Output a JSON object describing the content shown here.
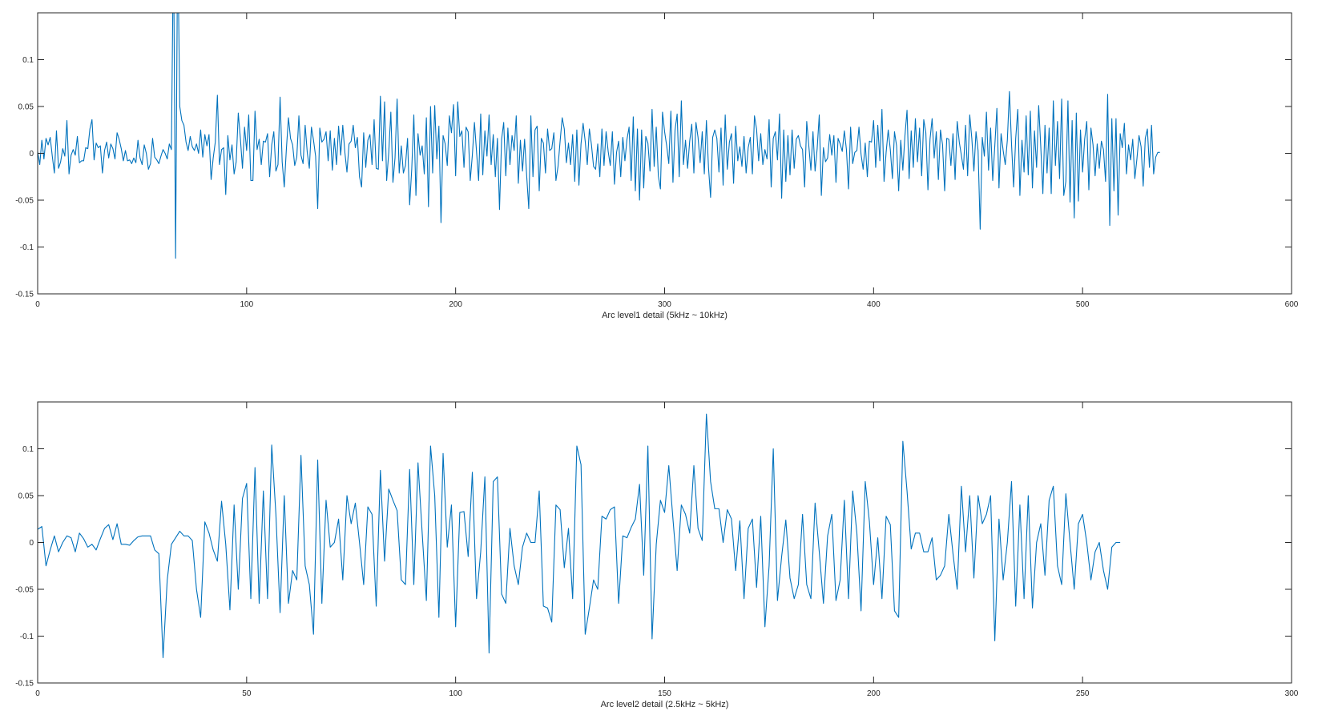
{
  "figure": {
    "line_color": "#0072bd",
    "axis_color": "#262626"
  },
  "chart_data": [
    {
      "type": "line",
      "xlabel": "Arc level1 detail (5kHz ~ 10kHz)",
      "ylabel": "",
      "xlim": [
        0,
        600
      ],
      "ylim": [
        -0.15,
        0.15
      ],
      "xticks": [
        0,
        100,
        200,
        300,
        400,
        500,
        600
      ],
      "xtick_labels": [
        "0",
        "100",
        "200",
        "300",
        "400",
        "500",
        "600"
      ],
      "yticks": [
        -0.15,
        -0.1,
        -0.05,
        0,
        0.05,
        0.1
      ],
      "ytick_labels": [
        "-0.15",
        "-0.1",
        "-0.05",
        "0",
        "0.05",
        "0.1"
      ],
      "grid": false,
      "series": [
        {
          "x_start": 0,
          "x_step": 1,
          "values": [
            0.002,
            -0.012,
            0.014,
            -0.006,
            0.016,
            0.009,
            0.017,
            -0.003,
            -0.021,
            0.024,
            -0.016,
            -0.009,
            0.005,
            -0.003,
            0.035,
            -0.022,
            -0.002,
            0.004,
            -0.002,
            0.018,
            -0.01,
            -0.008,
            -0.008,
            0.006,
            0.005,
            0.026,
            0.036,
            -0.007,
            0.011,
            0.006,
            0.008,
            -0.021,
            0.003,
            0.012,
            -0.005,
            0.01,
            0.005,
            -0.006,
            0.022,
            0.015,
            0.005,
            -0.008,
            0.003,
            -0.008,
            -0.007,
            -0.011,
            -0.005,
            -0.01,
            0.014,
            -0.005,
            -0.012,
            0.009,
            0.0,
            -0.017,
            -0.011,
            0.016,
            -0.004,
            -0.007,
            -0.011,
            -0.003,
            0.004,
            0.0,
            -0.006,
            0.01,
            0.004,
            0.23,
            -0.112,
            0.23,
            0.05,
            0.035,
            0.03,
            0.012,
            0.003,
            0.018,
            0.007,
            0.003,
            0.01,
            0.0,
            0.025,
            -0.004,
            0.02,
            0.008,
            0.02,
            -0.028,
            -0.005,
            0.012,
            0.062,
            -0.012,
            0.004,
            0.006,
            -0.044,
            0.019,
            -0.007,
            0.009,
            -0.022,
            -0.009,
            0.043,
            0.016,
            -0.016,
            0.028,
            0.003,
            0.041,
            -0.029,
            -0.029,
            0.045,
            0.004,
            0.015,
            -0.012,
            0.013,
            0.012,
            0.021,
            -0.025,
            0.009,
            0.023,
            -0.019,
            -0.012,
            0.06,
            -0.009,
            -0.036,
            0.004,
            0.038,
            0.016,
            0.009,
            -0.013,
            -0.004,
            0.04,
            -0.002,
            -0.011,
            0.03,
            0.001,
            -0.016,
            0.028,
            0.014,
            -0.003,
            -0.059,
            0.027,
            0.012,
            0.015,
            0.023,
            -0.008,
            0.024,
            -0.018,
            0.016,
            -0.012,
            0.029,
            -0.002,
            0.03,
            0.001,
            -0.02,
            0.01,
            0.013,
            0.03,
            0.006,
            0.017,
            -0.025,
            -0.036,
            0.022,
            -0.015,
            0.014,
            0.02,
            -0.012,
            0.036,
            -0.016,
            -0.017,
            0.061,
            -0.008,
            0.055,
            -0.029,
            0.001,
            0.044,
            -0.031,
            -0.005,
            0.058,
            -0.021,
            0.008,
            -0.021,
            -0.013,
            0.016,
            -0.055,
            -0.017,
            0.041,
            -0.045,
            0.021,
            -0.002,
            0.008,
            -0.022,
            0.038,
            -0.057,
            0.05,
            -0.021,
            0.051,
            -0.006,
            0.029,
            -0.074,
            0.019,
            0.01,
            -0.013,
            0.04,
            0.022,
            0.052,
            -0.024,
            0.055,
            0.018,
            0.024,
            -0.015,
            0.028,
            0.023,
            -0.029,
            -0.002,
            0.033,
            0.002,
            -0.029,
            0.042,
            -0.023,
            0.024,
            -0.003,
            0.041,
            -0.012,
            0.02,
            -0.025,
            0.016,
            -0.06,
            0.015,
            0.033,
            -0.024,
            0.027,
            -0.012,
            0.019,
            0.003,
            0.04,
            -0.032,
            0.014,
            -0.019,
            0.015,
            -0.024,
            -0.059,
            0.04,
            -0.025,
            0.025,
            0.029,
            -0.04,
            0.016,
            0.011,
            -0.021,
            0.026,
            0.003,
            0.005,
            0.022,
            -0.029,
            -0.014,
            0.013,
            0.038,
            0.026,
            -0.01,
            0.011,
            -0.012,
            0.02,
            -0.03,
            0.025,
            -0.034,
            0.01,
            0.032,
            0.013,
            -0.012,
            0.026,
            0.009,
            -0.014,
            -0.017,
            0.01,
            -0.025,
            0.026,
            -0.013,
            0.023,
            0.002,
            -0.013,
            0.023,
            -0.033,
            0.001,
            0.013,
            -0.025,
            0.017,
            -0.008,
            0.015,
            0.028,
            -0.029,
            0.039,
            -0.04,
            0.026,
            -0.05,
            0.025,
            -0.037,
            0.018,
            0.011,
            -0.019,
            0.047,
            -0.014,
            0.028,
            -0.024,
            -0.038,
            0.044,
            0.023,
            0.008,
            -0.011,
            0.045,
            -0.031,
            0.025,
            0.042,
            -0.025,
            0.056,
            -0.012,
            0.014,
            -0.016,
            0.013,
            0.031,
            -0.021,
            0.033,
            0.017,
            -0.01,
            0.023,
            -0.022,
            0.035,
            -0.015,
            -0.047,
            0.017,
            0.025,
            0.016,
            -0.02,
            0.027,
            -0.034,
            0.041,
            -0.017,
            0.012,
            0.021,
            -0.032,
            0.029,
            -0.008,
            0.007,
            -0.014,
            0.018,
            -0.021,
            0.006,
            0.017,
            -0.022,
            0.04,
            0.026,
            -0.008,
            0.021,
            -0.012,
            0.004,
            -0.006,
            0.036,
            -0.036,
            0.016,
            0.023,
            -0.007,
            0.042,
            -0.048,
            0.025,
            -0.03,
            0.019,
            -0.023,
            0.025,
            -0.016,
            0.015,
            0.019,
            0.008,
            0.004,
            -0.036,
            0.034,
            0.008,
            -0.018,
            0.023,
            -0.019,
            0.005,
            0.041,
            -0.045,
            0.006,
            -0.009,
            -0.005,
            0.02,
            -0.002,
            0.019,
            -0.031,
            0.016,
            0.01,
            0.002,
            0.024,
            0.004,
            -0.038,
            0.028,
            -0.011,
            0.001,
            0.003,
            0.028,
            -0.001,
            -0.017,
            0.011,
            -0.025,
            0.013,
            0.012,
            0.035,
            -0.015,
            0.03,
            -0.008,
            0.047,
            -0.03,
            0.001,
            0.025,
            0.004,
            -0.027,
            0.023,
            0.008,
            -0.04,
            0.014,
            -0.018,
            0.019,
            0.046,
            -0.027,
            0.024,
            -0.015,
            0.037,
            -0.009,
            0.027,
            -0.024,
            0.036,
            0.022,
            -0.039,
            0.015,
            0.037,
            -0.005,
            0.023,
            -0.028,
            0.025,
            0.009,
            -0.04,
            0.016,
            0.015,
            -0.013,
            0.021,
            -0.028,
            0.034,
            0.012,
            -0.002,
            -0.017,
            0.03,
            -0.024,
            0.041,
            0.016,
            -0.019,
            0.023,
            0.003,
            -0.081,
            0.017,
            -0.003,
            0.044,
            -0.018,
            0.027,
            -0.029,
            0.008,
            0.048,
            -0.037,
            0.021,
            0.003,
            -0.012,
            0.014,
            0.066,
            0.01,
            -0.036,
            0.016,
            0.047,
            -0.045,
            0.014,
            -0.02,
            0.04,
            -0.023,
            0.045,
            -0.037,
            0.024,
            -0.015,
            0.051,
            0.007,
            -0.043,
            0.03,
            -0.021,
            0.027,
            -0.043,
            0.056,
            -0.013,
            0.034,
            -0.027,
            0.058,
            -0.045,
            -0.03,
            0.056,
            -0.052,
            0.035,
            -0.069,
            0.043,
            -0.051,
            0.025,
            -0.02,
            0.015,
            0.034,
            -0.039,
            0.027,
            0.009,
            -0.024,
            0.01,
            -0.016,
            0.013,
            0.004,
            -0.03,
            0.063,
            -0.077,
            0.037,
            -0.04,
            0.037,
            -0.066,
            0.021,
            0.006,
            0.032,
            -0.022,
            0.009,
            -0.007,
            0.015,
            -0.027,
            -0.006,
            0.019,
            0.007,
            -0.035,
            0.016,
            0.026,
            -0.015,
            0.03,
            -0.022,
            -0.004,
            0.001,
            0.001
          ]
        }
      ]
    },
    {
      "type": "line",
      "xlabel": "Arc level2 detail (2.5kHz ~ 5kHz)",
      "ylabel": "",
      "xlim": [
        0,
        300
      ],
      "ylim": [
        -0.15,
        0.15
      ],
      "xticks": [
        0,
        50,
        100,
        150,
        200,
        250,
        300
      ],
      "xtick_labels": [
        "0",
        "50",
        "100",
        "150",
        "200",
        "250",
        "300"
      ],
      "yticks": [
        -0.15,
        -0.1,
        -0.05,
        0,
        0.05,
        0.1
      ],
      "ytick_labels": [
        "-0.15",
        "-0.1",
        "-0.05",
        "0",
        "0.05",
        "0.1"
      ],
      "grid": false,
      "series": [
        {
          "x_start": 0,
          "x_step": 1,
          "values": [
            0.014,
            0.017,
            -0.025,
            -0.008,
            0.007,
            -0.01,
            0.0,
            0.007,
            0.005,
            -0.01,
            0.01,
            0.004,
            -0.005,
            -0.002,
            -0.008,
            0.004,
            0.015,
            0.019,
            0.003,
            0.02,
            -0.002,
            -0.002,
            -0.003,
            0.002,
            0.006,
            0.007,
            0.007,
            0.007,
            -0.008,
            -0.012,
            -0.123,
            -0.04,
            -0.002,
            0.005,
            0.012,
            0.007,
            0.007,
            0.002,
            -0.05,
            -0.08,
            0.022,
            0.01,
            -0.008,
            -0.02,
            0.044,
            -0.002,
            -0.072,
            0.04,
            -0.05,
            0.047,
            0.063,
            -0.06,
            0.08,
            -0.065,
            0.055,
            -0.06,
            0.104,
            0.03,
            -0.075,
            0.05,
            -0.065,
            -0.03,
            -0.04,
            0.093,
            -0.025,
            -0.045,
            -0.098,
            0.088,
            -0.065,
            0.045,
            -0.005,
            0.0,
            0.025,
            -0.04,
            0.05,
            0.02,
            0.042,
            0.0,
            -0.045,
            0.038,
            0.03,
            -0.068,
            0.077,
            -0.02,
            0.057,
            0.045,
            0.034,
            -0.04,
            -0.045,
            0.078,
            -0.045,
            0.085,
            0.01,
            -0.062,
            0.103,
            0.05,
            -0.08,
            0.095,
            -0.005,
            0.04,
            -0.09,
            0.032,
            0.033,
            -0.015,
            0.075,
            -0.06,
            -0.01,
            0.07,
            -0.118,
            0.065,
            0.07,
            -0.055,
            -0.065,
            0.015,
            -0.025,
            -0.045,
            -0.005,
            0.01,
            0.0,
            0.0,
            0.055,
            -0.068,
            -0.07,
            -0.085,
            0.04,
            0.035,
            -0.027,
            0.015,
            -0.06,
            0.103,
            0.083,
            -0.098,
            -0.07,
            -0.04,
            -0.05,
            0.028,
            0.025,
            0.035,
            0.038,
            -0.065,
            0.007,
            0.005,
            0.016,
            0.025,
            0.062,
            -0.035,
            0.103,
            -0.103,
            -0.002,
            0.045,
            0.032,
            0.082,
            0.025,
            -0.03,
            0.04,
            0.03,
            0.01,
            0.082,
            0.015,
            0.002,
            0.137,
            0.065,
            0.036,
            0.036,
            0.0,
            0.035,
            0.025,
            -0.03,
            0.023,
            -0.06,
            0.015,
            0.025,
            -0.048,
            0.028,
            -0.09,
            -0.025,
            0.1,
            -0.062,
            -0.015,
            0.024,
            -0.038,
            -0.06,
            -0.045,
            0.03,
            -0.045,
            -0.06,
            0.042,
            -0.01,
            -0.065,
            0.007,
            0.03,
            -0.062,
            -0.04,
            0.045,
            -0.06,
            0.055,
            0.01,
            -0.073,
            0.065,
            0.022,
            -0.045,
            0.005,
            -0.06,
            0.028,
            0.019,
            -0.073,
            -0.08,
            0.108,
            0.055,
            -0.007,
            0.01,
            0.01,
            -0.01,
            -0.01,
            0.005,
            -0.04,
            -0.035,
            -0.025,
            0.03,
            -0.012,
            -0.05,
            0.06,
            -0.01,
            0.05,
            -0.038,
            0.05,
            0.02,
            0.03,
            0.05,
            -0.105,
            0.025,
            -0.04,
            0.0,
            0.065,
            -0.068,
            0.04,
            -0.06,
            0.05,
            -0.07,
            0.0,
            0.02,
            -0.035,
            0.045,
            0.06,
            -0.025,
            -0.045,
            0.052,
            0.0,
            -0.05,
            0.02,
            0.03,
            0.0,
            -0.04,
            -0.01,
            0.0,
            -0.03,
            -0.05,
            -0.005,
            0.0,
            0.0
          ]
        }
      ]
    }
  ]
}
